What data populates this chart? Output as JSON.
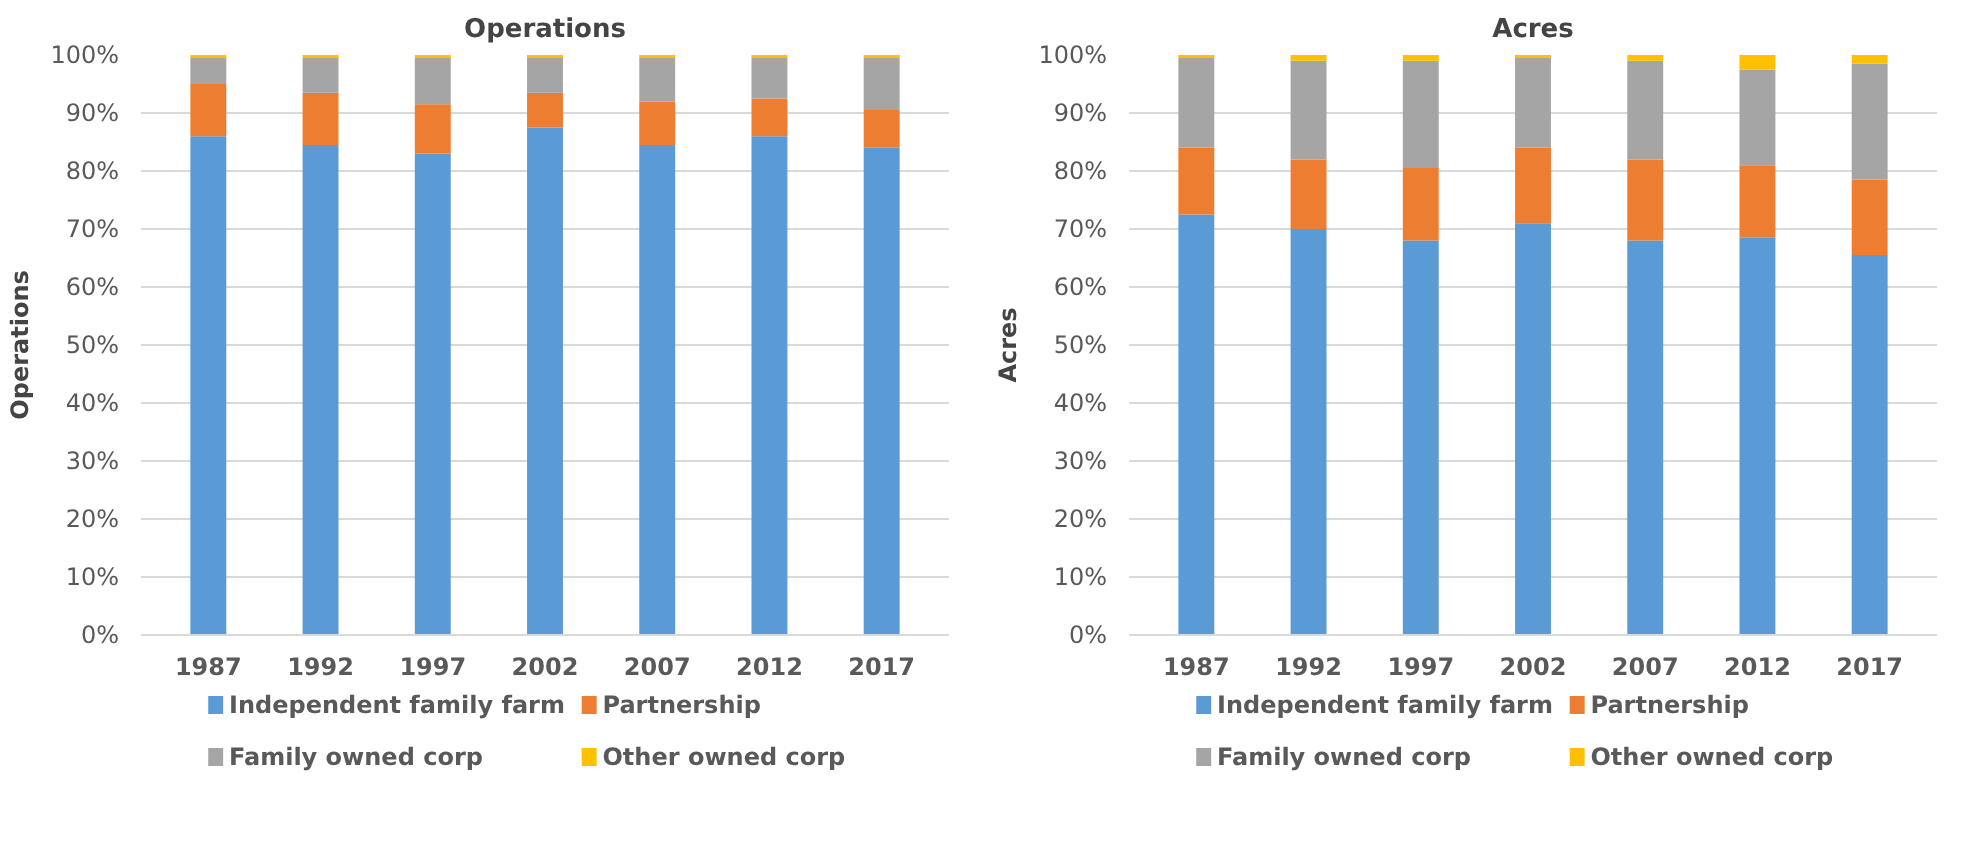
{
  "chart_data": [
    {
      "type": "bar",
      "stacked": true,
      "title": "Operations",
      "ylabel": "Operations",
      "categories": [
        "1987",
        "1992",
        "1997",
        "2002",
        "2007",
        "2012",
        "2017"
      ],
      "ylim": [
        0,
        100
      ],
      "yticks": [
        {
          "value": 0,
          "label": "0%"
        },
        {
          "value": 10,
          "label": "10%"
        },
        {
          "value": 20,
          "label": "20%"
        },
        {
          "value": 30,
          "label": "30%"
        },
        {
          "value": 40,
          "label": "40%"
        },
        {
          "value": 50,
          "label": "50%"
        },
        {
          "value": 60,
          "label": "60%"
        },
        {
          "value": 70,
          "label": "70%"
        },
        {
          "value": 80,
          "label": "80%"
        },
        {
          "value": 90,
          "label": "90%"
        },
        {
          "value": 100,
          "label": "100%"
        }
      ],
      "grid": "y",
      "legend": "bottom",
      "series": [
        {
          "name": "Independent family farm",
          "color": "#5b9bd5",
          "values": [
            86,
            84.5,
            83,
            87.5,
            84.5,
            86,
            84
          ]
        },
        {
          "name": "Partnership",
          "color": "#ed7d31",
          "values": [
            9,
            9,
            8.5,
            6,
            7.5,
            6.5,
            6.5
          ]
        },
        {
          "name": "Family owned corp",
          "color": "#a5a5a5",
          "values": [
            4.5,
            6,
            8,
            6,
            7.5,
            7,
            9
          ]
        },
        {
          "name": "Other owned corp",
          "color": "#ffc000",
          "values": [
            0.5,
            0.5,
            0.5,
            0.5,
            0.5,
            0.5,
            0.5
          ]
        }
      ]
    },
    {
      "type": "bar",
      "stacked": true,
      "title": "Acres",
      "ylabel": "Acres",
      "categories": [
        "1987",
        "1992",
        "1997",
        "2002",
        "2007",
        "2012",
        "2017"
      ],
      "ylim": [
        0,
        100
      ],
      "yticks": [
        {
          "value": 0,
          "label": "0%"
        },
        {
          "value": 10,
          "label": "10%"
        },
        {
          "value": 20,
          "label": "20%"
        },
        {
          "value": 30,
          "label": "30%"
        },
        {
          "value": 40,
          "label": "40%"
        },
        {
          "value": 50,
          "label": "50%"
        },
        {
          "value": 60,
          "label": "60%"
        },
        {
          "value": 70,
          "label": "70%"
        },
        {
          "value": 80,
          "label": "80%"
        },
        {
          "value": 90,
          "label": "90%"
        },
        {
          "value": 100,
          "label": "100%"
        }
      ],
      "grid": "y",
      "legend": "bottom",
      "series": [
        {
          "name": "Independent family farm",
          "color": "#5b9bd5",
          "values": [
            72.5,
            70,
            68,
            71,
            68,
            68.5,
            65.5
          ]
        },
        {
          "name": "Partnership",
          "color": "#ed7d31",
          "values": [
            11.5,
            12,
            12.5,
            13,
            14,
            12.5,
            13
          ]
        },
        {
          "name": "Family owned corp",
          "color": "#a5a5a5",
          "values": [
            15.5,
            17,
            18.5,
            15.5,
            17,
            16.5,
            20
          ]
        },
        {
          "name": "Other owned corp",
          "color": "#ffc000",
          "values": [
            0.5,
            1,
            1,
            0.5,
            1,
            2.5,
            1.5
          ]
        }
      ]
    }
  ]
}
